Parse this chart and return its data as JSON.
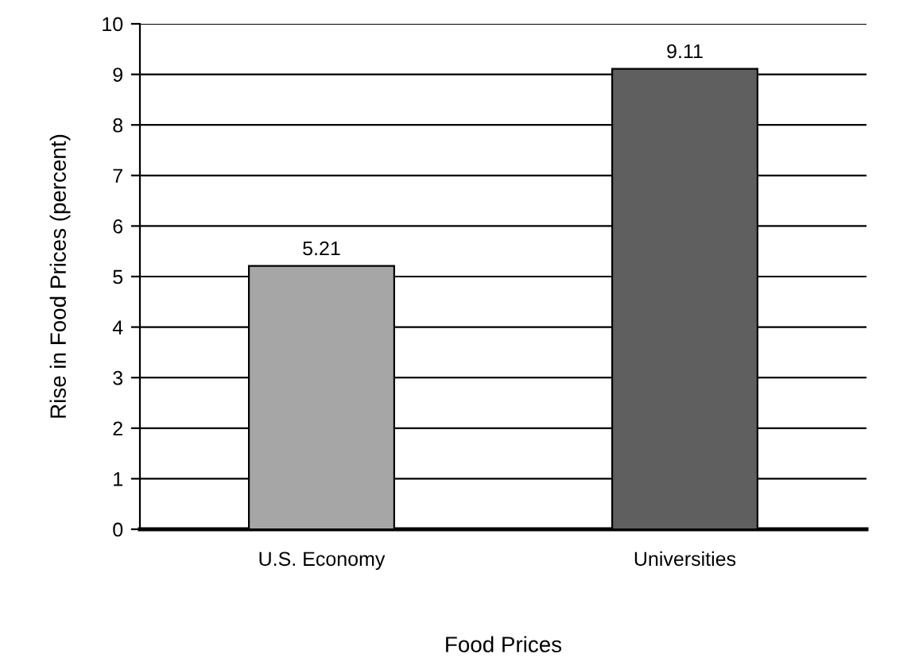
{
  "chart_data": {
    "type": "bar",
    "xlabel": "Food Prices",
    "ylabel": "Rise in Food Prices (percent)",
    "categories": [
      "U.S. Economy",
      "Universities"
    ],
    "values": [
      5.21,
      9.11
    ],
    "colors": [
      "#a6a6a6",
      "#5f5f5f"
    ],
    "ylim": [
      0,
      10
    ],
    "yticks": [
      0,
      1,
      2,
      3,
      4,
      5,
      6,
      7,
      8,
      9,
      10
    ],
    "grid": "y",
    "data_labels": true
  }
}
